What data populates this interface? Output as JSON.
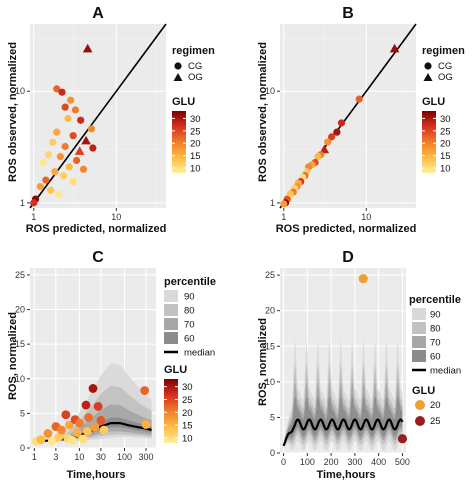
{
  "chart_data": [
    {
      "panel": "A",
      "type": "scatter",
      "title": "A",
      "xlabel": "ROS predicted, normalized",
      "ylabel": "ROS observed, normalized",
      "xscale": "log",
      "yscale": "log",
      "xlim": [
        0.9,
        40
      ],
      "ylim": [
        0.9,
        40
      ],
      "xticks": [
        "1",
        "10"
      ],
      "yticks": [
        "1",
        "10"
      ],
      "identity_line": true,
      "legend_shape": {
        "title": "regimen",
        "entries": [
          "CG",
          "OG"
        ]
      },
      "legend_color": {
        "title": "GLU",
        "ticks": [
          "30",
          "25",
          "20",
          "15",
          "10"
        ],
        "range": [
          8,
          33
        ]
      },
      "points": [
        {
          "x": 4.5,
          "y": 24,
          "glu": 31,
          "regimen": "OG"
        },
        {
          "x": 1.9,
          "y": 10.5,
          "glu": 22,
          "regimen": "CG"
        },
        {
          "x": 2.2,
          "y": 9.8,
          "glu": 27,
          "regimen": "CG"
        },
        {
          "x": 2.8,
          "y": 8.3,
          "glu": 18,
          "regimen": "CG"
        },
        {
          "x": 2.4,
          "y": 7.2,
          "glu": 24,
          "regimen": "CG"
        },
        {
          "x": 3.2,
          "y": 6.8,
          "glu": 20,
          "regimen": "CG"
        },
        {
          "x": 2.6,
          "y": 5.7,
          "glu": 14,
          "regimen": "CG"
        },
        {
          "x": 3.7,
          "y": 5.5,
          "glu": 27,
          "regimen": "CG"
        },
        {
          "x": 5.0,
          "y": 4.6,
          "glu": 19,
          "regimen": "CG"
        },
        {
          "x": 1.9,
          "y": 4.3,
          "glu": 16,
          "regimen": "CG"
        },
        {
          "x": 3.0,
          "y": 4.0,
          "glu": 24,
          "regimen": "CG"
        },
        {
          "x": 4.3,
          "y": 3.6,
          "glu": 30,
          "regimen": "OG"
        },
        {
          "x": 1.7,
          "y": 3.5,
          "glu": 12,
          "regimen": "CG"
        },
        {
          "x": 2.4,
          "y": 3.2,
          "glu": 20,
          "regimen": "CG"
        },
        {
          "x": 5.2,
          "y": 3.1,
          "glu": 28,
          "regimen": "CG"
        },
        {
          "x": 3.6,
          "y": 2.9,
          "glu": 25,
          "regimen": "OG"
        },
        {
          "x": 1.5,
          "y": 2.7,
          "glu": 11,
          "regimen": "CG"
        },
        {
          "x": 2.1,
          "y": 2.6,
          "glu": 18,
          "regimen": "CG"
        },
        {
          "x": 3.3,
          "y": 2.4,
          "glu": 22,
          "regimen": "CG"
        },
        {
          "x": 1.3,
          "y": 2.3,
          "glu": 9,
          "regimen": "CG"
        },
        {
          "x": 2.7,
          "y": 2.1,
          "glu": 14,
          "regimen": "CG"
        },
        {
          "x": 4.0,
          "y": 2.0,
          "glu": 19,
          "regimen": "CG"
        },
        {
          "x": 1.8,
          "y": 1.9,
          "glu": 16,
          "regimen": "CG"
        },
        {
          "x": 2.3,
          "y": 1.75,
          "glu": 12,
          "regimen": "CG"
        },
        {
          "x": 1.4,
          "y": 1.6,
          "glu": 22,
          "regimen": "CG"
        },
        {
          "x": 3.0,
          "y": 1.55,
          "glu": 10,
          "regimen": "CG"
        },
        {
          "x": 1.2,
          "y": 1.4,
          "glu": 17,
          "regimen": "CG"
        },
        {
          "x": 1.6,
          "y": 1.3,
          "glu": 13,
          "regimen": "CG"
        },
        {
          "x": 2.0,
          "y": 1.2,
          "glu": 9,
          "regimen": "CG"
        },
        {
          "x": 1.05,
          "y": 1.08,
          "glu": 32,
          "regimen": "CG"
        },
        {
          "x": 1.0,
          "y": 1.0,
          "glu": 26,
          "regimen": "CG"
        }
      ]
    },
    {
      "panel": "B",
      "type": "scatter",
      "title": "B",
      "xlabel": "ROS predicted, normalized",
      "ylabel": "ROS observed, normalized",
      "xscale": "log",
      "yscale": "log",
      "xlim": [
        0.9,
        40
      ],
      "ylim": [
        0.9,
        40
      ],
      "xticks": [
        "1",
        "10"
      ],
      "yticks": [
        "1",
        "10"
      ],
      "identity_line": true,
      "legend_shape": {
        "title": "regimen",
        "entries": [
          "CG",
          "OG"
        ]
      },
      "legend_color": {
        "title": "GLU",
        "ticks": [
          "30",
          "25",
          "20",
          "15",
          "10"
        ],
        "range": [
          8,
          33
        ]
      },
      "points": [
        {
          "x": 22,
          "y": 24,
          "glu": 31,
          "regimen": "OG"
        },
        {
          "x": 8.2,
          "y": 8.5,
          "glu": 22,
          "regimen": "CG"
        },
        {
          "x": 5.0,
          "y": 5.2,
          "glu": 27,
          "regimen": "CG"
        },
        {
          "x": 4.4,
          "y": 4.3,
          "glu": 30,
          "regimen": "CG"
        },
        {
          "x": 3.8,
          "y": 3.9,
          "glu": 25,
          "regimen": "CG"
        },
        {
          "x": 3.4,
          "y": 3.5,
          "glu": 18,
          "regimen": "CG"
        },
        {
          "x": 3.1,
          "y": 3.0,
          "glu": 28,
          "regimen": "OG"
        },
        {
          "x": 2.8,
          "y": 2.7,
          "glu": 20,
          "regimen": "CG"
        },
        {
          "x": 2.6,
          "y": 2.6,
          "glu": 14,
          "regimen": "CG"
        },
        {
          "x": 2.4,
          "y": 2.3,
          "glu": 24,
          "regimen": "CG"
        },
        {
          "x": 2.2,
          "y": 2.2,
          "glu": 16,
          "regimen": "CG"
        },
        {
          "x": 2.0,
          "y": 2.1,
          "glu": 19,
          "regimen": "CG"
        },
        {
          "x": 1.9,
          "y": 1.9,
          "glu": 12,
          "regimen": "CG"
        },
        {
          "x": 1.8,
          "y": 1.75,
          "glu": 22,
          "regimen": "CG"
        },
        {
          "x": 1.7,
          "y": 1.7,
          "glu": 10,
          "regimen": "CG"
        },
        {
          "x": 1.6,
          "y": 1.55,
          "glu": 26,
          "regimen": "CG"
        },
        {
          "x": 1.5,
          "y": 1.5,
          "glu": 15,
          "regimen": "CG"
        },
        {
          "x": 1.45,
          "y": 1.4,
          "glu": 18,
          "regimen": "CG"
        },
        {
          "x": 1.35,
          "y": 1.35,
          "glu": 11,
          "regimen": "CG"
        },
        {
          "x": 1.3,
          "y": 1.25,
          "glu": 20,
          "regimen": "CG"
        },
        {
          "x": 1.2,
          "y": 1.2,
          "glu": 13,
          "regimen": "CG"
        },
        {
          "x": 1.15,
          "y": 1.1,
          "glu": 9,
          "regimen": "CG"
        },
        {
          "x": 1.1,
          "y": 1.08,
          "glu": 23,
          "regimen": "CG"
        },
        {
          "x": 1.05,
          "y": 1.0,
          "glu": 32,
          "regimen": "CG"
        },
        {
          "x": 1.0,
          "y": 0.98,
          "glu": 17,
          "regimen": "CG"
        }
      ]
    },
    {
      "panel": "C",
      "type": "area",
      "title": "C",
      "xlabel": "Time,hours",
      "ylabel": "ROS, normalized",
      "xscale": "log",
      "xlim": [
        0.8,
        500
      ],
      "ylim": [
        0,
        26
      ],
      "xticks": [
        1,
        3,
        10,
        30,
        100,
        300
      ],
      "xtick_labels": [
        "1",
        "3",
        "10",
        "30",
        "100",
        "300"
      ],
      "yticks": [
        0,
        5,
        10,
        15,
        20,
        25
      ],
      "ytick_labels": [
        "0",
        "5",
        "10",
        "15",
        "20",
        "25"
      ],
      "legend_bands": {
        "title": "percentile",
        "entries": [
          "90",
          "80",
          "70",
          "60",
          "median"
        ]
      },
      "legend_color": {
        "title": "GLU",
        "ticks": [
          "30",
          "25",
          "20",
          "15",
          "10"
        ],
        "range": [
          8,
          33
        ]
      },
      "time": [
        1,
        2,
        3,
        5,
        8,
        12,
        20,
        30,
        50,
        80,
        120,
        200,
        300,
        400
      ],
      "median": [
        1.0,
        1.05,
        1.15,
        1.3,
        1.6,
        2.0,
        2.6,
        3.1,
        3.6,
        3.6,
        3.3,
        3.0,
        2.8,
        2.6
      ],
      "bands": [
        {
          "name": "90",
          "lower": [
            0.9,
            0.9,
            0.95,
            1.0,
            1.0,
            1.1,
            1.2,
            1.3,
            1.5,
            1.6,
            1.6,
            1.5,
            1.4,
            1.3
          ],
          "upper": [
            1.1,
            1.4,
            1.8,
            2.6,
            4.0,
            6.0,
            8.5,
            10.5,
            12.2,
            12.0,
            10.5,
            8.8,
            7.6,
            7.0
          ]
        },
        {
          "name": "80",
          "lower": [
            0.92,
            0.95,
            1.0,
            1.05,
            1.15,
            1.3,
            1.5,
            1.7,
            1.9,
            2.0,
            1.9,
            1.8,
            1.7,
            1.6
          ],
          "upper": [
            1.08,
            1.25,
            1.55,
            2.1,
            3.1,
            4.5,
            6.3,
            7.8,
            9.0,
            8.8,
            7.8,
            6.6,
            5.8,
            5.4
          ]
        },
        {
          "name": "70",
          "lower": [
            0.94,
            0.98,
            1.04,
            1.12,
            1.28,
            1.5,
            1.8,
            2.1,
            2.4,
            2.4,
            2.3,
            2.1,
            2.0,
            1.9
          ],
          "upper": [
            1.06,
            1.15,
            1.35,
            1.7,
            2.4,
            3.3,
            4.5,
            5.5,
            6.3,
            6.2,
            5.5,
            4.8,
            4.3,
            4.0
          ]
        },
        {
          "name": "60",
          "lower": [
            0.96,
            1.01,
            1.09,
            1.2,
            1.42,
            1.75,
            2.2,
            2.6,
            3.0,
            3.0,
            2.8,
            2.5,
            2.4,
            2.2
          ],
          "upper": [
            1.04,
            1.1,
            1.24,
            1.45,
            1.85,
            2.4,
            3.2,
            3.8,
            4.4,
            4.4,
            4.0,
            3.6,
            3.3,
            3.1
          ]
        }
      ],
      "points": [
        {
          "x": 1.1,
          "y": 1.0,
          "glu": 10
        },
        {
          "x": 1.4,
          "y": 1.2,
          "glu": 14
        },
        {
          "x": 2.0,
          "y": 2.1,
          "glu": 18
        },
        {
          "x": 2.5,
          "y": 1.0,
          "glu": 9
        },
        {
          "x": 3.0,
          "y": 3.1,
          "glu": 22
        },
        {
          "x": 3.5,
          "y": 1.6,
          "glu": 12
        },
        {
          "x": 4.0,
          "y": 2.6,
          "glu": 19
        },
        {
          "x": 5.0,
          "y": 4.8,
          "glu": 25
        },
        {
          "x": 5.5,
          "y": 1.4,
          "glu": 11
        },
        {
          "x": 6.0,
          "y": 3.3,
          "glu": 16
        },
        {
          "x": 7.0,
          "y": 1.1,
          "glu": 9
        },
        {
          "x": 8.0,
          "y": 4.1,
          "glu": 24
        },
        {
          "x": 9.0,
          "y": 2.2,
          "glu": 15
        },
        {
          "x": 10,
          "y": 3.6,
          "glu": 20
        },
        {
          "x": 12,
          "y": 1.3,
          "glu": 10
        },
        {
          "x": 14,
          "y": 6.2,
          "glu": 28
        },
        {
          "x": 15,
          "y": 2.4,
          "glu": 13
        },
        {
          "x": 16,
          "y": 4.4,
          "glu": 21
        },
        {
          "x": 20,
          "y": 8.6,
          "glu": 30
        },
        {
          "x": 22,
          "y": 3.0,
          "glu": 17
        },
        {
          "x": 26,
          "y": 6.0,
          "glu": 25
        },
        {
          "x": 30,
          "y": 4.0,
          "glu": 23
        },
        {
          "x": 35,
          "y": 2.6,
          "glu": 12
        },
        {
          "x": 280,
          "y": 8.3,
          "glu": 22
        },
        {
          "x": 300,
          "y": 3.4,
          "glu": 15
        }
      ]
    },
    {
      "panel": "D",
      "type": "area",
      "title": "D",
      "xlabel": "Time,hours",
      "ylabel": "ROS, normalized",
      "xlim": [
        -15,
        515
      ],
      "ylim": [
        0,
        26
      ],
      "xticks": [
        0,
        100,
        200,
        300,
        400,
        500
      ],
      "xtick_labels": [
        "0",
        "100",
        "200",
        "300",
        "400",
        "500"
      ],
      "yticks": [
        0,
        5,
        10,
        15,
        20,
        25
      ],
      "ytick_labels": [
        "0",
        "5",
        "10",
        "15",
        "20",
        "25"
      ],
      "legend_bands": {
        "title": "percentile",
        "entries": [
          "90",
          "80",
          "70",
          "60",
          "median"
        ]
      },
      "legend_glu": {
        "title": "GLU",
        "entries": [
          {
            "label": "20",
            "color": "#f0a030"
          },
          {
            "label": "25",
            "color": "#9b1c1c"
          }
        ]
      },
      "median": {
        "period_hours": 48,
        "baseline": 4.0,
        "amplitude": 0.7,
        "ramp_hours": 40
      },
      "band_half_widths": [
        {
          "name": "90",
          "amp": 12.0
        },
        {
          "name": "80",
          "amp": 8.5
        },
        {
          "name": "70",
          "amp": 6.0
        },
        {
          "name": "60",
          "amp": 4.0
        }
      ],
      "points": [
        {
          "x": 335,
          "y": 24.5,
          "glu": 20
        },
        {
          "x": 500,
          "y": 2.0,
          "glu": 25
        }
      ]
    }
  ]
}
